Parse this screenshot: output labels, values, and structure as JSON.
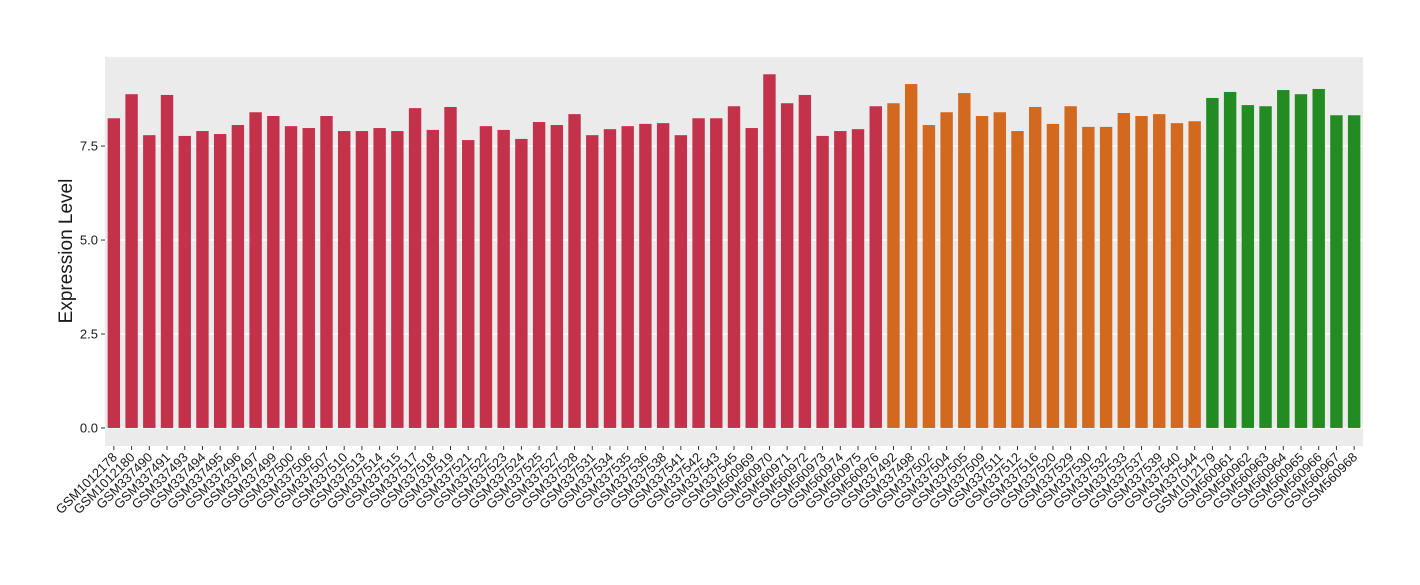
{
  "chart_data": {
    "type": "bar",
    "y_label": "Expression Level",
    "categories": [
      "GSM1012178",
      "GSM1012180",
      "GSM337490",
      "GSM337491",
      "GSM337493",
      "GSM337494",
      "GSM337495",
      "GSM337496",
      "GSM337497",
      "GSM337499",
      "GSM337500",
      "GSM337506",
      "GSM337507",
      "GSM337510",
      "GSM337513",
      "GSM337514",
      "GSM337515",
      "GSM337517",
      "GSM337518",
      "GSM337519",
      "GSM337521",
      "GSM337522",
      "GSM337523",
      "GSM337524",
      "GSM337525",
      "GSM337527",
      "GSM337528",
      "GSM337531",
      "GSM337534",
      "GSM337535",
      "GSM337536",
      "GSM337538",
      "GSM337541",
      "GSM337542",
      "GSM337543",
      "GSM337545",
      "GSM560969",
      "GSM560970",
      "GSM560971",
      "GSM560972",
      "GSM560973",
      "GSM560974",
      "GSM560975",
      "GSM560976",
      "GSM337492",
      "GSM337498",
      "GSM337502",
      "GSM337504",
      "GSM337505",
      "GSM337509",
      "GSM337511",
      "GSM337512",
      "GSM337516",
      "GSM337520",
      "GSM337529",
      "GSM337530",
      "GSM337532",
      "GSM337533",
      "GSM337537",
      "GSM337539",
      "GSM337540",
      "GSM337544",
      "GSM1012179",
      "GSM560961",
      "GSM560962",
      "GSM560963",
      "GSM560964",
      "GSM560965",
      "GSM560966",
      "GSM560967",
      "GSM560968"
    ],
    "values": [
      8.24,
      8.88,
      7.79,
      8.86,
      7.77,
      7.9,
      7.82,
      8.06,
      8.4,
      8.3,
      8.03,
      7.98,
      8.3,
      7.9,
      7.9,
      7.98,
      7.9,
      8.51,
      7.93,
      8.54,
      7.66,
      8.03,
      7.93,
      7.69,
      8.14,
      8.06,
      8.35,
      7.79,
      7.95,
      8.03,
      8.09,
      8.11,
      7.79,
      8.24,
      8.24,
      8.56,
      7.98,
      9.41,
      8.64,
      8.86,
      7.77,
      7.9,
      7.95,
      8.56,
      8.64,
      9.15,
      8.06,
      8.4,
      8.91,
      8.3,
      8.4,
      7.9,
      8.54,
      8.09,
      8.56,
      8.01,
      8.01,
      8.38,
      8.3,
      8.35,
      8.11,
      8.16,
      8.78,
      8.94,
      8.59,
      8.56,
      8.99,
      8.88,
      9.02,
      8.32,
      8.32
    ],
    "colors": [
      "#c3324a",
      "#c3324a",
      "#c3324a",
      "#c3324a",
      "#c3324a",
      "#c3324a",
      "#c3324a",
      "#c3324a",
      "#c3324a",
      "#c3324a",
      "#c3324a",
      "#c3324a",
      "#c3324a",
      "#c3324a",
      "#c3324a",
      "#c3324a",
      "#c3324a",
      "#c3324a",
      "#c3324a",
      "#c3324a",
      "#c3324a",
      "#c3324a",
      "#c3324a",
      "#c3324a",
      "#c3324a",
      "#c3324a",
      "#c3324a",
      "#c3324a",
      "#c3324a",
      "#c3324a",
      "#c3324a",
      "#c3324a",
      "#c3324a",
      "#c3324a",
      "#c3324a",
      "#c3324a",
      "#c3324a",
      "#c3324a",
      "#c3324a",
      "#c3324a",
      "#c3324a",
      "#c3324a",
      "#c3324a",
      "#c3324a",
      "#d2691e",
      "#d2691e",
      "#d2691e",
      "#d2691e",
      "#d2691e",
      "#d2691e",
      "#d2691e",
      "#d2691e",
      "#d2691e",
      "#d2691e",
      "#d2691e",
      "#d2691e",
      "#d2691e",
      "#d2691e",
      "#d2691e",
      "#d2691e",
      "#d2691e",
      "#d2691e",
      "#228b22",
      "#228b22",
      "#228b22",
      "#228b22",
      "#228b22",
      "#228b22",
      "#228b22",
      "#228b22",
      "#228b22"
    ],
    "ylim": [
      -0.48,
      9.87
    ],
    "yticks": [
      {
        "value": 0,
        "label": "0.0"
      },
      2.5,
      {
        "value": 5,
        "label": "5.0"
      },
      7.5
    ],
    "grid": true
  }
}
